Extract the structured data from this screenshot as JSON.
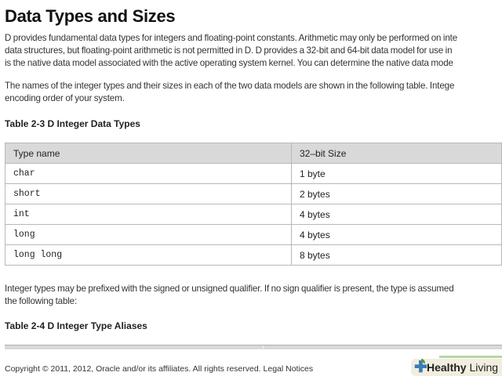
{
  "page": {
    "title": "Data Types and Sizes",
    "intro_lines": [
      "D provides fundamental data types for integers and floating-point constants. Arithmetic may only be performed on inte",
      "data structures, but floating-point arithmetic is not permitted in D. D provides a 32-bit and 64-bit data model for use in",
      "is the native data model associated with the active operating system kernel. You can determine the native data mode"
    ],
    "names_lines": [
      "The names of the integer types and their sizes in each of the two data models are shown in the following table. Intege",
      "encoding order of your system."
    ],
    "table1": {
      "caption": "Table 2-3 D Integer Data Types",
      "headers": [
        "Type name",
        "32–bit Size"
      ],
      "rows": [
        [
          "char",
          "1 byte"
        ],
        [
          "short",
          "2 bytes"
        ],
        [
          "int",
          "4 bytes"
        ],
        [
          "long",
          "4 bytes"
        ],
        [
          "long long",
          "8 bytes"
        ]
      ]
    },
    "prefix_lines": [
      "Integer types may be prefixed with the signed or unsigned qualifier. If no sign qualifier is present, the type is assumed",
      "the following table:"
    ],
    "table2": {
      "caption": "Table 2-4 D Integer Type Aliases"
    }
  },
  "footer": {
    "copyright": "Copyright © 2011, 2012, Oracle and/or its affiliates. All rights reserved.",
    "legal_link": "Legal Notices"
  },
  "badge": {
    "bold": "Healthy",
    "rest": "Living",
    "icon": "plus-leaf-icon",
    "colors": {
      "plus": "#3a7db8",
      "leaf": "#5a9a3a"
    }
  }
}
